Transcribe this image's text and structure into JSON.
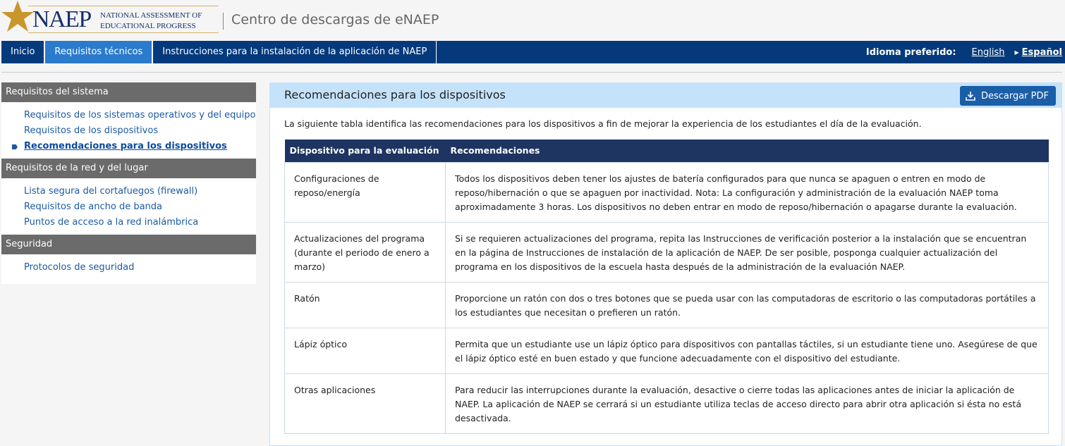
{
  "header": {
    "logo_text": "NAEP",
    "logo_sub": "NATIONAL ASSESSMENT OF EDUCATIONAL PROGRESS",
    "site_title": "Centro de descargas de eNAEP"
  },
  "nav": {
    "items": [
      {
        "label": "Inicio"
      },
      {
        "label": "Requisitos técnicos",
        "active": true
      },
      {
        "label": "Instrucciones para la instalación de la aplicación de NAEP"
      }
    ],
    "language_label": "Idioma preferido:",
    "languages": [
      "English",
      "Español"
    ],
    "current_language": "Español"
  },
  "sidebar": {
    "sections": [
      {
        "title": "Requisitos del sistema",
        "links": [
          "Requisitos de los sistemas operativos y del equipo",
          "Requisitos de los dispositivos",
          "Recomendaciones para los dispositivos"
        ]
      },
      {
        "title": "Requisitos de la red y del lugar",
        "links": [
          "Lista segura del cortafuegos (firewall)",
          "Requisitos de ancho de banda",
          "Puntos de acceso a la red inalámbrica"
        ]
      },
      {
        "title": "Seguridad",
        "links": [
          "Protocolos de seguridad"
        ]
      }
    ],
    "current": "Recomendaciones para los dispositivos"
  },
  "main": {
    "title": "Recomendaciones para los dispositivos",
    "download_label": "Descargar PDF",
    "download_icon": "download-icon",
    "intro": "La siguiente tabla identifica las recomendaciones para los dispositivos a fin de mejorar la experiencia de los estudiantes el día de la evaluación.",
    "table": {
      "headers": [
        "Dispositivo para la evaluación",
        "Recomendaciones"
      ],
      "rows": [
        [
          "Configuraciones de reposo/energía",
          "Todos los dispositivos deben tener los ajustes de batería configurados para que nunca se apaguen o entren en modo de reposo/hibernación o que se apaguen por inactividad. Nota: La configuración y administración de la evaluación NAEP toma aproximadamente 3 horas. Los dispositivos no deben entrar en modo de reposo/hibernación o apagarse durante la evaluación."
        ],
        [
          "Actualizaciones del programa (durante el periodo de enero a marzo)",
          "Si se requieren actualizaciones del programa, repita las Instrucciones de verificación posterior a la instalación que se encuentran en la página de Instrucciones de instalación de la aplicación de NAEP. De ser posible, posponga cualquier actualización del programa en los dispositivos de la escuela hasta después de la administración de la evaluación NAEP."
        ],
        [
          "Ratón",
          "Proporcione un ratón con dos o tres botones que se pueda usar con las computadoras de escritorio o las computadoras portátiles a los estudiantes que necesitan o prefieren un ratón."
        ],
        [
          "Lápiz óptico",
          "Permita que un estudiante use un lápiz óptico para dispositivos con pantallas táctiles, si un estudiante tiene uno. Asegúrese de que el lápiz óptico esté en buen estado y que funcione adecuadamente con el dispositivo del estudiante."
        ],
        [
          "Otras aplicaciones",
          "Para reducir las interrupciones durante la evaluación, desactive o cierre todas las aplicaciones antes de iniciar la aplicación de NAEP. La aplicación de NAEP se cerrará si un estudiante utiliza teclas de acceso directo para abrir otra aplicación si ésta no está desactivada."
        ]
      ]
    }
  },
  "colors": {
    "nav": "#043a7c",
    "nav_active": "#2a7bcc",
    "sidebar_header": "#6b6b6b",
    "panel_header": "#c5e2fb",
    "table_header": "#1e3461",
    "link": "#1b5aa3"
  }
}
